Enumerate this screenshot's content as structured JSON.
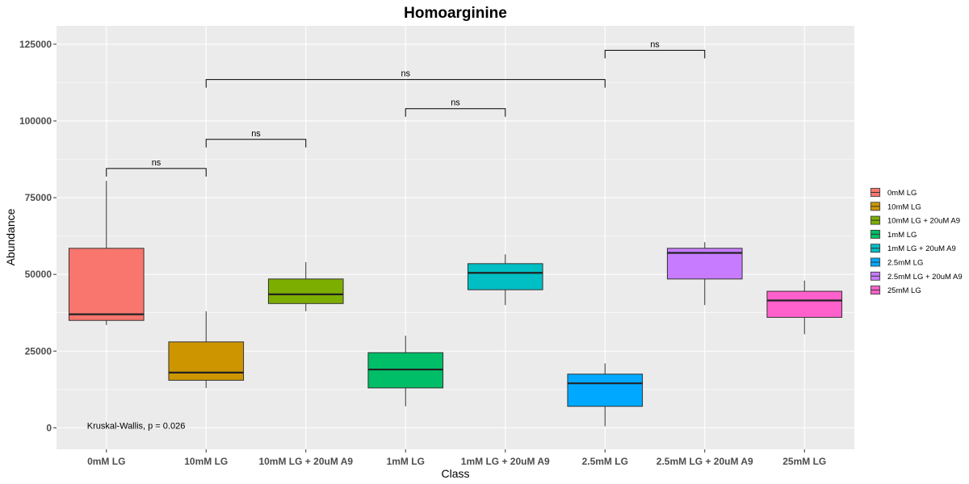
{
  "chart_data": {
    "type": "box",
    "title": "Homoarginine",
    "xlabel": "Class",
    "ylabel": "Abundance",
    "ylim": [
      -7000,
      131000
    ],
    "yticks": [
      0,
      25000,
      50000,
      75000,
      100000,
      125000
    ],
    "ytick_labels": [
      "0",
      "25000",
      "50000",
      "75000",
      "100000",
      "125000"
    ],
    "grid": true,
    "legend_position": "right",
    "categories": [
      "0mM LG",
      "10mM LG",
      "10mM LG + 20uM A9",
      "1mM LG",
      "1mM LG + 20uM A9",
      "2.5mM LG",
      "2.5mM LG + 20uM A9",
      "25mM LG"
    ],
    "colors": [
      "#F8766D",
      "#CD9600",
      "#7CAE00",
      "#00BE67",
      "#00BFC4",
      "#00A9FF",
      "#C77CFF",
      "#FF61CC"
    ],
    "boxes": [
      {
        "min": 33500,
        "q1": 35000,
        "median": 37000,
        "q3": 58500,
        "max": 80500
      },
      {
        "min": 13000,
        "q1": 15500,
        "median": 18000,
        "q3": 28000,
        "max": 38000
      },
      {
        "min": 38000,
        "q1": 40500,
        "median": 43500,
        "q3": 48500,
        "max": 54000
      },
      {
        "min": 7000,
        "q1": 13000,
        "median": 19000,
        "q3": 24500,
        "max": 30000
      },
      {
        "min": 40000,
        "q1": 45000,
        "median": 50500,
        "q3": 53500,
        "max": 56500
      },
      {
        "min": 500,
        "q1": 7000,
        "median": 14500,
        "q3": 17500,
        "max": 21000
      },
      {
        "min": 40000,
        "q1": 48500,
        "median": 57000,
        "q3": 58500,
        "max": 60500
      },
      {
        "min": 30500,
        "q1": 36000,
        "median": 41500,
        "q3": 44500,
        "max": 48000
      }
    ],
    "comparisons": [
      {
        "from": 0,
        "to": 1,
        "y": 84500,
        "label": "ns"
      },
      {
        "from": 1,
        "to": 2,
        "y": 94000,
        "label": "ns"
      },
      {
        "from": 3,
        "to": 4,
        "y": 104000,
        "label": "ns"
      },
      {
        "from": 1,
        "to": 5,
        "y": 113500,
        "label": "ns"
      },
      {
        "from": 5,
        "to": 6,
        "y": 123000,
        "label": "ns"
      }
    ],
    "annotation": {
      "text": "Kruskal-Wallis, p = 0.026",
      "x_category": 0,
      "y": 700
    }
  }
}
